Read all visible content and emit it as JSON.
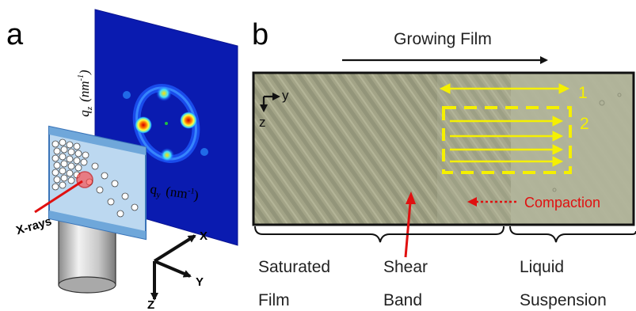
{
  "panel_a": {
    "letter": "a",
    "qz_label": "q",
    "qz_sub": "z",
    "qz_unit": "(nm",
    "qz_exp": "-1",
    "qz_close": ")",
    "qy_label": "q",
    "qy_sub": "y",
    "qy_unit": "(nm",
    "qy_exp": "-1",
    "qy_close": ")",
    "xray_label": "X-rays",
    "axis_x": "X",
    "axis_y": "Y",
    "axis_z": "Z"
  },
  "panel_b": {
    "letter": "b",
    "growing_film": "Growing Film",
    "axis_y": "y",
    "axis_z": "z",
    "marker_1": "1",
    "marker_2": "2",
    "compaction": "Compaction",
    "regions": {
      "saturated_line1": "Saturated",
      "saturated_line2": "Film",
      "shear_line1": "Shear",
      "shear_line2": "Band",
      "liquid_line1": "Liquid",
      "liquid_line2": "Suspension"
    }
  },
  "colors": {
    "yellow": "#f5f000",
    "red": "#e01010",
    "film_bg": "#a3a487",
    "liquid_bg": "#b2b59b",
    "detector_bg": "#0a1bb0"
  }
}
